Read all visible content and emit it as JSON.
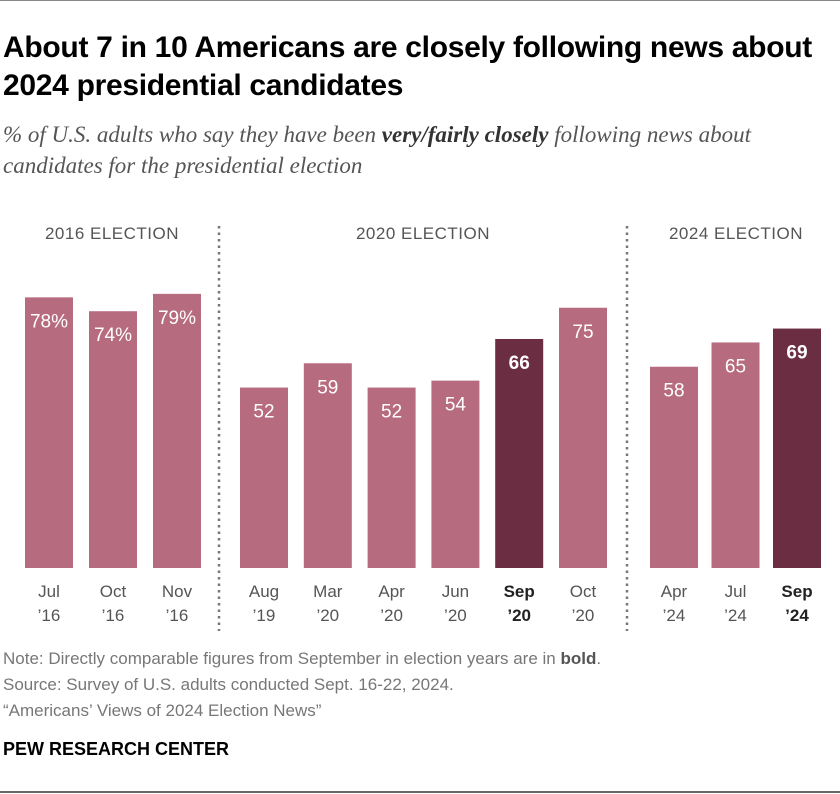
{
  "title": "About 7 in 10 Americans are closely following news about 2024 presidential candidates",
  "subtitle_pre": "% of U.S. adults who say they have been ",
  "subtitle_bold": "very/fairly closely",
  "subtitle_post": " following news about candidates for the presidential election",
  "note_pre": "Note: Directly comparable figures from September in election years are in ",
  "note_bold": "bold",
  "note_post": ".",
  "source": "Source: Survey of U.S. adults conducted Sept. 16-22, 2024.",
  "report": "“Americans’ Views of 2024 Election News”",
  "brand": "PEW RESEARCH CENTER",
  "colors": {
    "regular": "#b76b7f",
    "highlight": "#6b2d42",
    "label": "#555555"
  },
  "chart_data": {
    "type": "bar",
    "ylim": [
      0,
      100
    ],
    "grid": false,
    "groups": [
      {
        "label": "2016 ELECTION",
        "bars": [
          {
            "month": "Jul",
            "year": "’16",
            "value": 78,
            "label": "78%",
            "bold": false
          },
          {
            "month": "Oct",
            "year": "’16",
            "value": 74,
            "label": "74%",
            "bold": false
          },
          {
            "month": "Nov",
            "year": "’16",
            "value": 79,
            "label": "79%",
            "bold": false
          }
        ]
      },
      {
        "label": "2020 ELECTION",
        "bars": [
          {
            "month": "Aug",
            "year": "’19",
            "value": 52,
            "label": "52",
            "bold": false
          },
          {
            "month": "Mar",
            "year": "’20",
            "value": 59,
            "label": "59",
            "bold": false
          },
          {
            "month": "Apr",
            "year": "’20",
            "value": 52,
            "label": "52",
            "bold": false
          },
          {
            "month": "Jun",
            "year": "’20",
            "value": 54,
            "label": "54",
            "bold": false
          },
          {
            "month": "Sep",
            "year": "’20",
            "value": 66,
            "label": "66",
            "bold": true
          },
          {
            "month": "Oct",
            "year": "’20",
            "value": 75,
            "label": "75",
            "bold": false
          }
        ]
      },
      {
        "label": "2024 ELECTION",
        "bars": [
          {
            "month": "Apr",
            "year": "’24",
            "value": 58,
            "label": "58",
            "bold": false
          },
          {
            "month": "Jul",
            "year": "’24",
            "value": 65,
            "label": "65",
            "bold": false
          },
          {
            "month": "Sep",
            "year": "’24",
            "value": 69,
            "label": "69",
            "bold": true
          }
        ]
      }
    ]
  }
}
